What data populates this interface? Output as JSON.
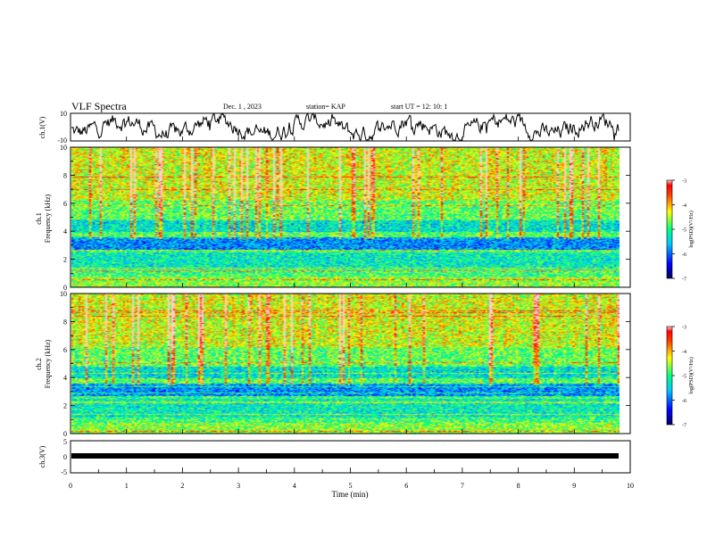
{
  "header": {
    "title": "VLF Spectra",
    "date": "Dec. 1 , 2023",
    "station": "station= KAP",
    "start": "start  UT =  12: 10: 1"
  },
  "chart_data": [
    {
      "type": "line",
      "id": "ch1-waveform",
      "ylabel": "ch.1(V)",
      "ylim": [
        -10,
        10
      ],
      "ytick_labels": [
        "10",
        "-10"
      ],
      "xlim": [
        0,
        10
      ],
      "description": "noisy waveform, roughly oscillating between -10 and 10 V over 0–9.8 min"
    },
    {
      "type": "heatmap",
      "id": "ch1-spectrogram",
      "ylabel": "ch.1\nFrequency (kHz)",
      "ylabel_line1": "ch.1",
      "ylabel_line2": "Frequency (kHz)",
      "ylim": [
        0,
        10
      ],
      "ytick_labels": [
        "0",
        "2",
        "4",
        "6",
        "8",
        "10"
      ],
      "xlim": [
        0,
        10
      ],
      "data_end_min": 9.8,
      "colorbar": {
        "label": "log(PSD)(V²/Hz)",
        "range": [
          -7,
          -3
        ],
        "tick_labels": [
          "-3",
          "-4",
          "-5",
          "-6",
          "-7"
        ]
      }
    },
    {
      "type": "heatmap",
      "id": "ch2-spectrogram",
      "ylabel_line1": "ch.2",
      "ylabel_line2": "Frequency (kHz)",
      "ylim": [
        0,
        10
      ],
      "ytick_labels": [
        "0",
        "2",
        "4",
        "6",
        "8",
        "10"
      ],
      "xlim": [
        0,
        10
      ],
      "data_end_min": 9.8,
      "colorbar": {
        "label": "log(PSD)(V²/Hz)",
        "range": [
          -7,
          -3
        ],
        "tick_labels": [
          "-3",
          "-4",
          "-5",
          "-6",
          "-7"
        ]
      }
    },
    {
      "type": "line",
      "id": "ch3-waveform",
      "ylabel": "ch.3(V)",
      "ylim": [
        -5,
        5
      ],
      "ytick_labels": [
        "5",
        "0",
        "-5"
      ],
      "xlim": [
        0,
        10
      ],
      "xlabel": "Time  (min)",
      "xtick_labels": [
        "0",
        "1",
        "2",
        "3",
        "4",
        "5",
        "6",
        "7",
        "8",
        "9",
        "10"
      ],
      "description": "thick flat band near -1 V from 0 to 9.8 min"
    }
  ],
  "colors": {
    "colormap": [
      "#000060",
      "#0000ff",
      "#00c0ff",
      "#00ff80",
      "#ffff00",
      "#ff8000",
      "#ff0000",
      "#ffffff"
    ]
  }
}
